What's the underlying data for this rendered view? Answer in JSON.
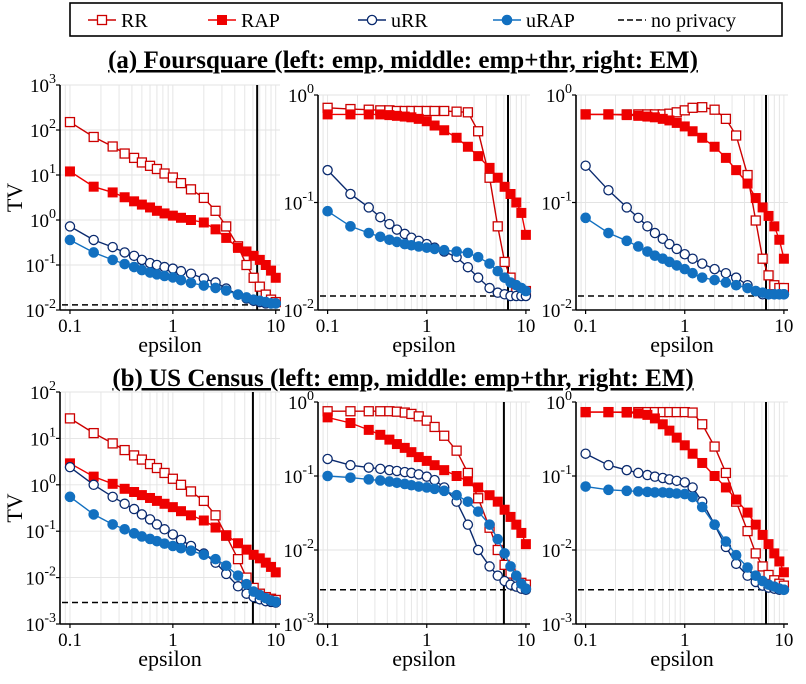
{
  "legend": {
    "entries": [
      {
        "name": "RR",
        "color": "#cc0000",
        "marker": "open-square",
        "line": "solid"
      },
      {
        "name": "RAP",
        "color": "#ee0000",
        "marker": "filled-square",
        "line": "solid"
      },
      {
        "name": "uRR",
        "color": "#0a2a6e",
        "marker": "open-circle",
        "line": "solid"
      },
      {
        "name": "uRAP",
        "color": "#1270c0",
        "marker": "filled-circle",
        "line": "solid"
      },
      {
        "name": "no privacy",
        "color": "#000000",
        "marker": "none",
        "line": "dashed"
      }
    ]
  },
  "section_titles": [
    "(a) Foursquare (left: emp, middle: emp+thr, right: EM)",
    "(b) US Census (left: emp, middle: emp+thr, right: EM)"
  ],
  "axis_text": {
    "xlabel": "epsilon",
    "ylabel": "TV",
    "x_tick_labels": [
      "0.1",
      "1",
      "10"
    ],
    "power_base": "10"
  },
  "chart_data": [
    {
      "type": "line",
      "dataset": "Foursquare",
      "method": "emp",
      "x_scale": "log",
      "y_scale": "log",
      "xlim": [
        0.08,
        11
      ],
      "ylim": [
        0.01,
        1000
      ],
      "y_tick_exponents": [
        -2,
        -1,
        0,
        1,
        2,
        3
      ],
      "vline": 6.6,
      "grid": true,
      "x": [
        0.1,
        0.17,
        0.26,
        0.34,
        0.42,
        0.5,
        0.6,
        0.7,
        0.83,
        1.0,
        1.2,
        1.5,
        2.0,
        2.6,
        3.3,
        4.3,
        5.2,
        6.1,
        7.0,
        8.0,
        9.0,
        10.0
      ],
      "series": [
        {
          "name": "RR",
          "values": [
            150,
            70,
            43,
            30,
            24,
            19,
            16,
            13.6,
            10.8,
            8.8,
            6.6,
            4.8,
            3.1,
            1.6,
            0.72,
            0.26,
            0.1,
            0.052,
            0.033,
            0.022,
            0.017,
            0.015
          ]
        },
        {
          "name": "RAP",
          "values": [
            12,
            5.5,
            4.1,
            3.2,
            2.6,
            2.2,
            1.9,
            1.6,
            1.4,
            1.25,
            1.12,
            1.0,
            0.88,
            0.62,
            0.4,
            0.24,
            0.2,
            0.16,
            0.13,
            0.1,
            0.075,
            0.052
          ]
        },
        {
          "name": "uRR",
          "values": [
            0.72,
            0.36,
            0.25,
            0.19,
            0.16,
            0.13,
            0.11,
            0.1,
            0.09,
            0.083,
            0.073,
            0.064,
            0.05,
            0.041,
            0.03,
            0.022,
            0.018,
            0.016,
            0.015,
            0.014,
            0.014,
            0.014
          ]
        },
        {
          "name": "uRAP",
          "values": [
            0.36,
            0.19,
            0.13,
            0.105,
            0.09,
            0.077,
            0.068,
            0.062,
            0.057,
            0.053,
            0.046,
            0.04,
            0.035,
            0.031,
            0.027,
            0.022,
            0.019,
            0.017,
            0.016,
            0.015,
            0.014,
            0.014
          ]
        }
      ],
      "no_privacy": 0.013
    },
    {
      "type": "line",
      "dataset": "Foursquare",
      "method": "emp+thr",
      "x_scale": "log",
      "y_scale": "log",
      "xlim": [
        0.08,
        11
      ],
      "ylim": [
        0.01,
        1
      ],
      "y_tick_exponents": [
        -2,
        -1,
        0
      ],
      "vline": 6.6,
      "grid": true,
      "x": [
        0.1,
        0.17,
        0.26,
        0.34,
        0.42,
        0.5,
        0.6,
        0.7,
        0.83,
        1.0,
        1.2,
        1.5,
        2.0,
        2.6,
        3.3,
        4.3,
        5.2,
        6.1,
        7.0,
        8.0,
        9.0,
        10.0
      ],
      "series": [
        {
          "name": "RR",
          "values": [
            0.76,
            0.74,
            0.73,
            0.72,
            0.72,
            0.71,
            0.71,
            0.71,
            0.71,
            0.71,
            0.71,
            0.71,
            0.7,
            0.69,
            0.46,
            0.17,
            0.06,
            0.028,
            0.02,
            0.016,
            0.015,
            0.015
          ]
        },
        {
          "name": "RAP",
          "values": [
            0.66,
            0.66,
            0.66,
            0.66,
            0.65,
            0.64,
            0.63,
            0.62,
            0.6,
            0.57,
            0.52,
            0.47,
            0.4,
            0.33,
            0.27,
            0.21,
            0.17,
            0.14,
            0.12,
            0.1,
            0.08,
            0.05
          ]
        },
        {
          "name": "uRR",
          "values": [
            0.2,
            0.12,
            0.09,
            0.073,
            0.063,
            0.056,
            0.051,
            0.047,
            0.044,
            0.041,
            0.038,
            0.035,
            0.031,
            0.025,
            0.02,
            0.016,
            0.0145,
            0.014,
            0.0135,
            0.0135,
            0.0135,
            0.0135
          ]
        },
        {
          "name": "uRAP",
          "values": [
            0.083,
            0.06,
            0.052,
            0.048,
            0.045,
            0.043,
            0.041,
            0.04,
            0.039,
            0.038,
            0.037,
            0.036,
            0.035,
            0.034,
            0.031,
            0.027,
            0.023,
            0.02,
            0.018,
            0.017,
            0.016,
            0.015
          ]
        }
      ],
      "no_privacy": 0.0135
    },
    {
      "type": "line",
      "dataset": "Foursquare",
      "method": "EM",
      "x_scale": "log",
      "y_scale": "log",
      "xlim": [
        0.08,
        11
      ],
      "ylim": [
        0.01,
        1
      ],
      "y_tick_exponents": [
        -2,
        -1,
        0
      ],
      "vline": 6.6,
      "grid": true,
      "x": [
        0.1,
        0.17,
        0.26,
        0.34,
        0.42,
        0.5,
        0.6,
        0.7,
        0.83,
        1.0,
        1.2,
        1.5,
        2.0,
        2.6,
        3.3,
        4.3,
        5.2,
        6.1,
        7.0,
        8.0,
        9.0,
        10.0
      ],
      "series": [
        {
          "name": "RR",
          "values": [
            0.66,
            0.66,
            0.66,
            0.66,
            0.66,
            0.66,
            0.66,
            0.67,
            0.69,
            0.72,
            0.76,
            0.77,
            0.73,
            0.6,
            0.42,
            0.18,
            0.068,
            0.03,
            0.021,
            0.017,
            0.016,
            0.016
          ]
        },
        {
          "name": "RAP",
          "values": [
            0.66,
            0.66,
            0.65,
            0.64,
            0.63,
            0.62,
            0.6,
            0.58,
            0.55,
            0.51,
            0.46,
            0.4,
            0.33,
            0.26,
            0.2,
            0.15,
            0.11,
            0.09,
            0.075,
            0.06,
            0.045,
            0.03
          ]
        },
        {
          "name": "uRR",
          "values": [
            0.22,
            0.13,
            0.09,
            0.072,
            0.06,
            0.052,
            0.046,
            0.041,
            0.037,
            0.033,
            0.03,
            0.027,
            0.024,
            0.022,
            0.02,
            0.017,
            0.015,
            0.014,
            0.014,
            0.014,
            0.014,
            0.014
          ]
        },
        {
          "name": "uRAP",
          "values": [
            0.072,
            0.052,
            0.044,
            0.039,
            0.035,
            0.032,
            0.03,
            0.028,
            0.026,
            0.024,
            0.022,
            0.02,
            0.019,
            0.018,
            0.017,
            0.016,
            0.015,
            0.0145,
            0.014,
            0.014,
            0.014,
            0.014
          ]
        }
      ],
      "no_privacy": 0.0135
    },
    {
      "type": "line",
      "dataset": "US Census",
      "method": "emp",
      "x_scale": "log",
      "y_scale": "log",
      "xlim": [
        0.08,
        11
      ],
      "ylim": [
        0.001,
        100
      ],
      "y_tick_exponents": [
        -3,
        -2,
        -1,
        0,
        1,
        2
      ],
      "vline": 6.0,
      "grid": true,
      "x": [
        0.1,
        0.17,
        0.26,
        0.34,
        0.42,
        0.5,
        0.6,
        0.7,
        0.83,
        1.0,
        1.2,
        1.5,
        2.0,
        2.6,
        3.3,
        4.3,
        5.2,
        6.1,
        7.0,
        8.0,
        9.0,
        10.0
      ],
      "series": [
        {
          "name": "RR",
          "values": [
            27,
            13,
            7.8,
            5.6,
            4.3,
            3.5,
            2.8,
            2.3,
            1.8,
            1.35,
            1.0,
            0.72,
            0.45,
            0.22,
            0.08,
            0.025,
            0.01,
            0.006,
            0.0045,
            0.0038,
            0.0035,
            0.0033
          ]
        },
        {
          "name": "RAP",
          "values": [
            2.9,
            1.5,
            1.05,
            0.82,
            0.7,
            0.6,
            0.52,
            0.45,
            0.39,
            0.33,
            0.27,
            0.22,
            0.17,
            0.12,
            0.082,
            0.055,
            0.04,
            0.031,
            0.026,
            0.021,
            0.017,
            0.013
          ]
        },
        {
          "name": "uRR",
          "values": [
            2.4,
            1.0,
            0.55,
            0.39,
            0.3,
            0.23,
            0.18,
            0.14,
            0.11,
            0.085,
            0.065,
            0.048,
            0.033,
            0.021,
            0.012,
            0.0065,
            0.0045,
            0.0038,
            0.0034,
            0.0031,
            0.003,
            0.0029
          ]
        },
        {
          "name": "uRAP",
          "values": [
            0.55,
            0.23,
            0.14,
            0.11,
            0.09,
            0.077,
            0.068,
            0.061,
            0.054,
            0.048,
            0.043,
            0.038,
            0.031,
            0.025,
            0.018,
            0.011,
            0.0072,
            0.005,
            0.0042,
            0.0036,
            0.0032,
            0.003
          ]
        }
      ],
      "no_privacy": 0.0029
    },
    {
      "type": "line",
      "dataset": "US Census",
      "method": "emp+thr",
      "x_scale": "log",
      "y_scale": "log",
      "xlim": [
        0.08,
        11
      ],
      "ylim": [
        0.001,
        1
      ],
      "y_tick_exponents": [
        -3,
        -2,
        -1,
        0
      ],
      "vline": 6.0,
      "grid": true,
      "x": [
        0.1,
        0.17,
        0.26,
        0.34,
        0.42,
        0.5,
        0.6,
        0.7,
        0.83,
        1.0,
        1.2,
        1.5,
        2.0,
        2.6,
        3.3,
        4.3,
        5.2,
        6.1,
        7.0,
        8.0,
        9.0,
        10.0
      ],
      "series": [
        {
          "name": "RR",
          "values": [
            0.75,
            0.75,
            0.75,
            0.75,
            0.75,
            0.74,
            0.72,
            0.69,
            0.64,
            0.56,
            0.46,
            0.35,
            0.22,
            0.11,
            0.05,
            0.02,
            0.01,
            0.0063,
            0.0048,
            0.004,
            0.0036,
            0.0034
          ]
        },
        {
          "name": "RAP",
          "values": [
            0.62,
            0.52,
            0.42,
            0.36,
            0.31,
            0.27,
            0.24,
            0.21,
            0.18,
            0.16,
            0.14,
            0.12,
            0.1,
            0.085,
            0.07,
            0.055,
            0.045,
            0.035,
            0.028,
            0.022,
            0.017,
            0.012
          ]
        },
        {
          "name": "uRR",
          "values": [
            0.17,
            0.14,
            0.13,
            0.125,
            0.12,
            0.117,
            0.113,
            0.11,
            0.105,
            0.098,
            0.088,
            0.07,
            0.045,
            0.022,
            0.01,
            0.006,
            0.0045,
            0.0038,
            0.0034,
            0.0032,
            0.003,
            0.0029
          ]
        },
        {
          "name": "uRAP",
          "values": [
            0.1,
            0.095,
            0.09,
            0.087,
            0.084,
            0.081,
            0.078,
            0.075,
            0.072,
            0.07,
            0.067,
            0.063,
            0.055,
            0.045,
            0.033,
            0.022,
            0.014,
            0.009,
            0.006,
            0.0045,
            0.0035,
            0.003
          ]
        }
      ],
      "no_privacy": 0.0029
    },
    {
      "type": "line",
      "dataset": "US Census",
      "method": "EM",
      "x_scale": "log",
      "y_scale": "log",
      "xlim": [
        0.08,
        11
      ],
      "ylim": [
        0.001,
        1
      ],
      "y_tick_exponents": [
        -3,
        -2,
        -1,
        0
      ],
      "vline": 6.6,
      "grid": true,
      "x": [
        0.1,
        0.17,
        0.26,
        0.34,
        0.42,
        0.5,
        0.6,
        0.7,
        0.83,
        1.0,
        1.2,
        1.5,
        2.0,
        2.6,
        3.3,
        4.3,
        5.2,
        6.1,
        7.0,
        8.0,
        9.0,
        10.0
      ],
      "series": [
        {
          "name": "RR",
          "values": [
            0.73,
            0.73,
            0.73,
            0.73,
            0.73,
            0.73,
            0.73,
            0.73,
            0.73,
            0.73,
            0.72,
            0.5,
            0.25,
            0.11,
            0.045,
            0.018,
            0.009,
            0.006,
            0.0046,
            0.0039,
            0.0035,
            0.0033
          ]
        },
        {
          "name": "RAP",
          "values": [
            0.73,
            0.73,
            0.72,
            0.7,
            0.67,
            0.6,
            0.5,
            0.41,
            0.33,
            0.26,
            0.2,
            0.15,
            0.1,
            0.07,
            0.048,
            0.032,
            0.022,
            0.016,
            0.012,
            0.009,
            0.007,
            0.005
          ]
        },
        {
          "name": "uRR",
          "values": [
            0.2,
            0.14,
            0.12,
            0.11,
            0.103,
            0.098,
            0.094,
            0.09,
            0.086,
            0.082,
            0.07,
            0.045,
            0.022,
            0.011,
            0.0065,
            0.0045,
            0.0037,
            0.0033,
            0.0031,
            0.003,
            0.0029,
            0.0029
          ]
        },
        {
          "name": "uRAP",
          "values": [
            0.072,
            0.065,
            0.063,
            0.062,
            0.061,
            0.06,
            0.06,
            0.059,
            0.058,
            0.057,
            0.052,
            0.038,
            0.022,
            0.013,
            0.0085,
            0.0058,
            0.0045,
            0.0038,
            0.0034,
            0.0032,
            0.003,
            0.0029
          ]
        }
      ],
      "no_privacy": 0.0029
    }
  ]
}
